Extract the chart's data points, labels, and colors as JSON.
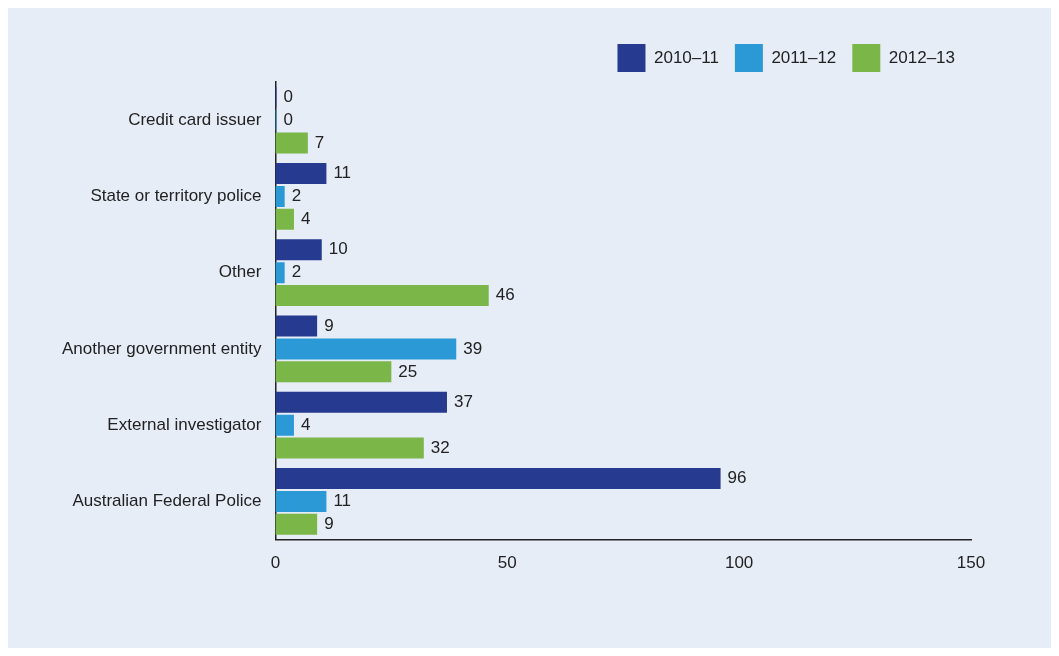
{
  "chart_data": {
    "type": "bar",
    "orientation": "horizontal",
    "categories": [
      "Credit card issuer",
      "State or territory police",
      "Other",
      "Another government entity",
      "External investigator",
      "Australian Federal Police"
    ],
    "series": [
      {
        "name": "2010–11",
        "color": "#263a8f",
        "values": [
          0,
          11,
          10,
          9,
          37,
          96
        ]
      },
      {
        "name": "2011–12",
        "color": "#2b99d6",
        "values": [
          0,
          2,
          2,
          39,
          4,
          11
        ]
      },
      {
        "name": "2012–13",
        "color": "#7ab648",
        "values": [
          7,
          4,
          46,
          25,
          32,
          9
        ]
      }
    ],
    "xlim": [
      0,
      150
    ],
    "xticks": [
      0,
      50,
      100,
      150
    ],
    "data_labels": true,
    "legend": "top right",
    "grid": false
  }
}
